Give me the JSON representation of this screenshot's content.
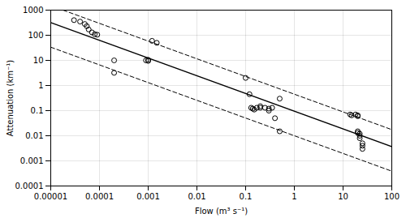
{
  "chart_data": {
    "type": "scatter",
    "xlabel": "Flow (m³ s⁻¹)",
    "ylabel": "Attenuation (km⁻¹)",
    "log": true,
    "grid": true,
    "xlim": [
      1e-05,
      100
    ],
    "ylim": [
      0.0001,
      1000
    ],
    "xticks": [
      1e-05,
      0.0001,
      0.001,
      0.01,
      0.1,
      1,
      10,
      100
    ],
    "yticks": [
      0.0001,
      0.001,
      0.01,
      0.1,
      1,
      10,
      100,
      1000
    ],
    "series": [
      {
        "type": "scatter",
        "marker": "circle",
        "color": "#000000",
        "x": [
          3e-05,
          4e-05,
          5e-05,
          5.5e-05,
          6e-05,
          7e-05,
          8e-05,
          9e-05,
          0.0002,
          0.0002,
          0.0009,
          0.001,
          0.001,
          0.0012,
          0.0015,
          0.1,
          0.12,
          0.13,
          0.14,
          0.15,
          0.17,
          0.2,
          0.2,
          0.25,
          0.3,
          0.3,
          0.35,
          0.4,
          0.5,
          0.5,
          14,
          15,
          18,
          20,
          20,
          20,
          20,
          22,
          22,
          22,
          25,
          25,
          25
        ],
        "values": [
          400,
          350,
          280,
          230,
          170,
          130,
          110,
          105,
          10,
          3.2,
          10,
          10.5,
          9.5,
          60,
          50,
          2.0,
          0.45,
          0.13,
          0.12,
          0.11,
          0.13,
          0.15,
          0.13,
          0.13,
          0.12,
          0.1,
          0.13,
          0.05,
          0.015,
          0.3,
          0.07,
          0.065,
          0.07,
          0.065,
          0.06,
          0.015,
          0.013,
          0.012,
          0.01,
          0.008,
          0.005,
          0.004,
          0.003
        ]
      },
      {
        "type": "line",
        "line_style": "solid",
        "color": "#000000",
        "x": [
          1e-05,
          100
        ],
        "values": [
          318.217,
          0.0036959
        ]
      },
      {
        "type": "line",
        "line_style": "dashed",
        "color": "#000000",
        "x": [
          1.7897e-05,
          100
        ],
        "values": [
          1000,
          0.017507
        ]
      },
      {
        "type": "line",
        "line_style": "dashed",
        "color": "#000000",
        "x": [
          1e-05,
          100
        ],
        "values": [
          33.4965,
          0.000389045
        ]
      }
    ]
  }
}
